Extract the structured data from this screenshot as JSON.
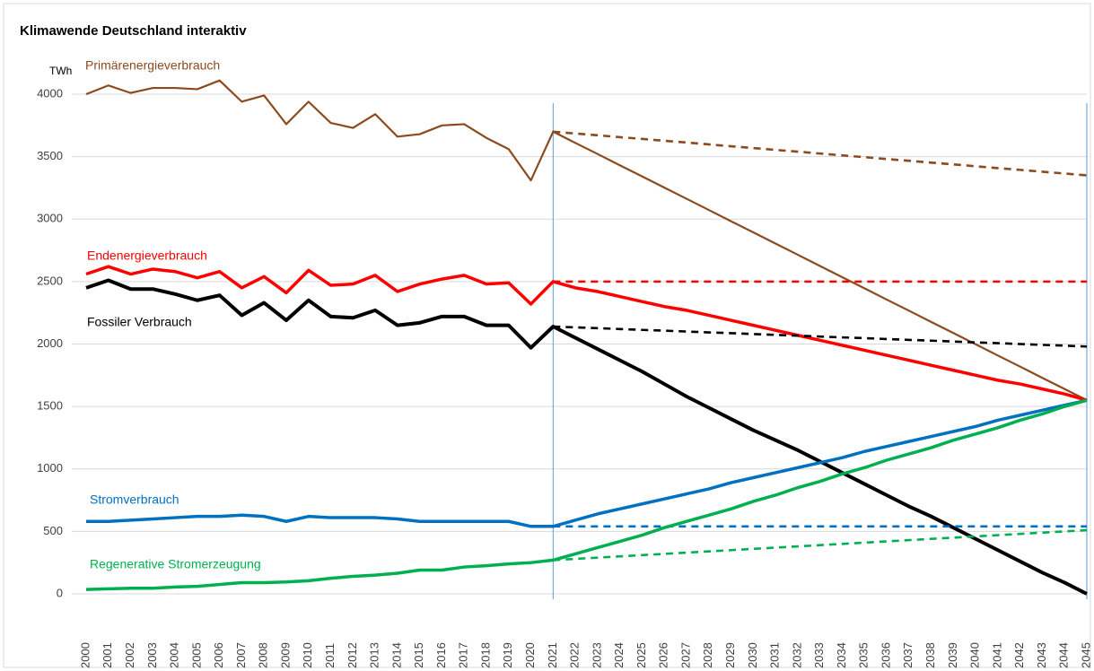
{
  "chart_data": {
    "type": "line",
    "title": "Klimawende Deutschland interaktiv",
    "y_label": "TWh",
    "categories": [
      "2000",
      "2001",
      "2002",
      "2003",
      "2004",
      "2005",
      "2006",
      "2007",
      "2008",
      "2009",
      "2010",
      "2011",
      "2012",
      "2013",
      "2014",
      "2015",
      "2016",
      "2017",
      "2018",
      "2019",
      "2020",
      "2021",
      "2022",
      "2023",
      "2024",
      "2025",
      "2026",
      "2027",
      "2028",
      "2029",
      "2030",
      "2031",
      "2032",
      "2033",
      "2034",
      "2035",
      "2036",
      "2037",
      "2038",
      "2039",
      "2040",
      "2041",
      "2042",
      "2043",
      "2044",
      "2045"
    ],
    "ylim": [
      0,
      4000
    ],
    "yticks": [
      0,
      500,
      1000,
      1500,
      2000,
      2500,
      3000,
      3500,
      4000
    ],
    "grid": true,
    "series": [
      {
        "name": "Primärenergieverbrauch",
        "color": "#8c4a1e",
        "line_width": 2.2,
        "values": [
          4000,
          4070,
          4010,
          4050,
          4050,
          4040,
          4110,
          3940,
          3990,
          3760,
          3940,
          3770,
          3730,
          3840,
          3660,
          3680,
          3750,
          3760,
          3650,
          3560,
          3310,
          3700,
          3610,
          3521,
          3431,
          3342,
          3252,
          3163,
          3073,
          2983,
          2894,
          2804,
          2715,
          2625,
          2535,
          2446,
          2356,
          2267,
          2177,
          2088,
          1998,
          1908,
          1819,
          1729,
          1640,
          1550
        ]
      },
      {
        "color": "#8c4a1e",
        "dashed": true,
        "line_width": 2.6,
        "values": [
          null,
          null,
          null,
          null,
          null,
          null,
          null,
          null,
          null,
          null,
          null,
          null,
          null,
          null,
          null,
          null,
          null,
          null,
          null,
          null,
          null,
          3700,
          3685,
          3671,
          3656,
          3642,
          3627,
          3613,
          3598,
          3583,
          3569,
          3554,
          3540,
          3525,
          3510,
          3496,
          3481,
          3467,
          3452,
          3438,
          3423,
          3408,
          3394,
          3379,
          3365,
          3350
        ]
      },
      {
        "name": "Endenergieverbrauch",
        "color": "#ff0000",
        "line_width": 3.5,
        "values": [
          2560,
          2620,
          2560,
          2600,
          2580,
          2530,
          2580,
          2450,
          2540,
          2410,
          2590,
          2470,
          2480,
          2550,
          2420,
          2480,
          2520,
          2550,
          2480,
          2490,
          2320,
          2500,
          2450,
          2420,
          2380,
          2340,
          2300,
          2270,
          2230,
          2190,
          2150,
          2110,
          2070,
          2030,
          1990,
          1950,
          1910,
          1870,
          1830,
          1790,
          1750,
          1710,
          1680,
          1640,
          1600,
          1550
        ]
      },
      {
        "color": "#ff0000",
        "dashed": true,
        "line_width": 2.6,
        "values": [
          null,
          null,
          null,
          null,
          null,
          null,
          null,
          null,
          null,
          null,
          null,
          null,
          null,
          null,
          null,
          null,
          null,
          null,
          null,
          null,
          null,
          2500,
          2500,
          2500,
          2500,
          2500,
          2500,
          2500,
          2500,
          2500,
          2500,
          2500,
          2500,
          2500,
          2500,
          2500,
          2500,
          2500,
          2500,
          2500,
          2500,
          2500,
          2500,
          2500,
          2500,
          2500
        ]
      },
      {
        "name": "Fossiler Verbrauch",
        "color": "#000000",
        "line_width": 4,
        "values": [
          2450,
          2510,
          2440,
          2440,
          2400,
          2350,
          2390,
          2230,
          2330,
          2190,
          2350,
          2220,
          2210,
          2270,
          2150,
          2170,
          2220,
          2220,
          2150,
          2150,
          1970,
          2140,
          2050,
          1960,
          1870,
          1780,
          1680,
          1580,
          1490,
          1400,
          1310,
          1230,
          1150,
          1060,
          970,
          880,
          790,
          700,
          620,
          530,
          440,
          350,
          260,
          170,
          90,
          0
        ]
      },
      {
        "color": "#000000",
        "dashed": true,
        "line_width": 2.6,
        "values": [
          null,
          null,
          null,
          null,
          null,
          null,
          null,
          null,
          null,
          null,
          null,
          null,
          null,
          null,
          null,
          null,
          null,
          null,
          null,
          null,
          null,
          2140,
          2133,
          2127,
          2120,
          2113,
          2107,
          2100,
          2093,
          2087,
          2080,
          2073,
          2067,
          2060,
          2053,
          2047,
          2040,
          2033,
          2027,
          2020,
          2013,
          2007,
          2000,
          1993,
          1987,
          1980
        ]
      },
      {
        "name": "Stromverbrauch",
        "color": "#0070c0",
        "line_width": 3.5,
        "values": [
          580,
          580,
          590,
          600,
          610,
          620,
          620,
          630,
          620,
          580,
          620,
          610,
          610,
          610,
          600,
          580,
          580,
          580,
          580,
          580,
          540,
          540,
          590,
          640,
          680,
          720,
          760,
          800,
          840,
          890,
          930,
          970,
          1010,
          1050,
          1090,
          1140,
          1180,
          1220,
          1260,
          1300,
          1340,
          1390,
          1430,
          1470,
          1510,
          1550
        ]
      },
      {
        "color": "#0070c0",
        "dashed": true,
        "line_width": 2.6,
        "values": [
          null,
          null,
          null,
          null,
          null,
          null,
          null,
          null,
          null,
          null,
          null,
          null,
          null,
          null,
          null,
          null,
          null,
          null,
          null,
          null,
          null,
          540,
          540,
          540,
          540,
          540,
          540,
          540,
          540,
          540,
          540,
          540,
          540,
          540,
          540,
          540,
          540,
          540,
          540,
          540,
          540,
          540,
          540,
          540,
          540,
          540
        ]
      },
      {
        "name": "Regenerative Stromerzeugung",
        "color": "#00b050",
        "line_width": 3.5,
        "values": [
          35,
          40,
          45,
          45,
          55,
          60,
          75,
          90,
          90,
          95,
          105,
          125,
          140,
          150,
          165,
          190,
          190,
          215,
          225,
          240,
          250,
          270,
          320,
          370,
          420,
          470,
          530,
          580,
          630,
          680,
          740,
          790,
          850,
          900,
          960,
          1010,
          1070,
          1120,
          1170,
          1230,
          1280,
          1330,
          1390,
          1440,
          1500,
          1550
        ]
      },
      {
        "color": "#00b050",
        "dashed": true,
        "line_width": 2.6,
        "values": [
          null,
          null,
          null,
          null,
          null,
          null,
          null,
          null,
          null,
          null,
          null,
          null,
          null,
          null,
          null,
          null,
          null,
          null,
          null,
          null,
          null,
          270,
          280,
          290,
          300,
          310,
          320,
          330,
          340,
          350,
          360,
          370,
          380,
          390,
          400,
          410,
          420,
          430,
          440,
          450,
          460,
          470,
          480,
          490,
          500,
          510
        ]
      }
    ]
  }
}
